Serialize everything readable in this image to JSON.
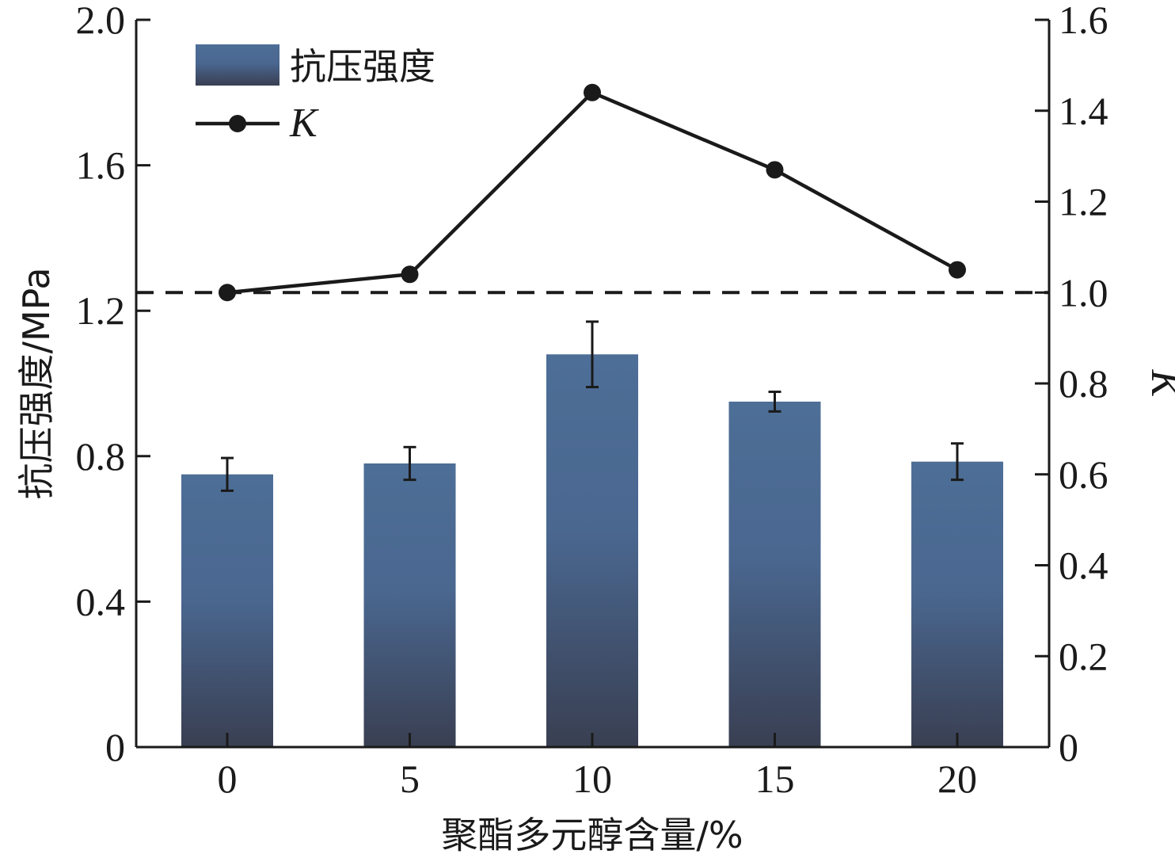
{
  "chart_data": {
    "type": "bar",
    "categories": [
      "0",
      "5",
      "10",
      "15",
      "20"
    ],
    "xlabel": "聚酯多元醇含量/%",
    "ylabel": "抗压强度/MPa",
    "y2label": "K",
    "ylim": [
      0,
      2.0
    ],
    "y2lim": [
      0,
      1.6
    ],
    "yticks": [
      "0",
      "0.4",
      "0.8",
      "1.2",
      "1.6",
      "2.0"
    ],
    "y2ticks": [
      "0",
      "0.2",
      "0.4",
      "0.6",
      "0.8",
      "1.0",
      "1.2",
      "1.4",
      "1.6"
    ],
    "legend": "top-left",
    "series": [
      {
        "name": "抗压强度",
        "type": "bar",
        "axis": "left",
        "values": [
          0.75,
          0.78,
          1.08,
          0.95,
          0.785
        ],
        "errors": [
          0.045,
          0.045,
          0.09,
          0.027,
          0.05
        ],
        "color_top": "#4d6e96",
        "color_bottom": "#393f52"
      },
      {
        "name": "K",
        "type": "line",
        "axis": "right",
        "values": [
          1.0,
          1.04,
          1.44,
          1.27,
          1.05
        ],
        "color": "#1a1a1a"
      }
    ],
    "reference_line": {
      "axis": "right",
      "value": 1.0,
      "style": "dashed"
    }
  }
}
